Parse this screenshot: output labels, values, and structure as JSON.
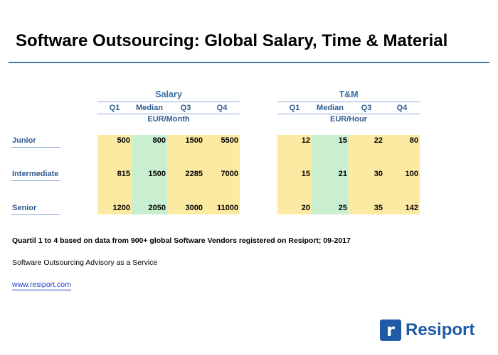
{
  "title": "Software Outsourcing: Global Salary, Time & Material",
  "salary": {
    "group_title": "Salary",
    "headers": [
      "Q1",
      "Median",
      "Q3",
      "Q4"
    ],
    "unit": "EUR/Month",
    "rows": [
      [
        "500",
        "800",
        "1500",
        "5500"
      ],
      [
        "815",
        "1500",
        "2285",
        "7000"
      ],
      [
        "1200",
        "2050",
        "3000",
        "11000"
      ]
    ]
  },
  "tm": {
    "group_title": "T&M",
    "headers": [
      "Q1",
      "Median",
      "Q3",
      "Q4"
    ],
    "unit": "EUR/Hour",
    "rows": [
      [
        "12",
        "15",
        "22",
        "80"
      ],
      [
        "15",
        "21",
        "30",
        "100"
      ],
      [
        "20",
        "25",
        "35",
        "142"
      ]
    ]
  },
  "row_labels": [
    "Junior",
    "Intermediate",
    "Senior"
  ],
  "footnote": "Quartil 1 to 4 based on data from 900+ global Software Vendors registered on Resiport; 09-2017",
  "advisory": "Software Outsourcing Advisory as a Service",
  "link": "www.resiport.com",
  "logo": {
    "mark": "r",
    "name": "Resiport"
  },
  "colors": {
    "accent": "#4a76b0",
    "q_yellow": "#fdeaa2",
    "median_green": "#c9efd0",
    "logo": "#1f5aa6"
  }
}
